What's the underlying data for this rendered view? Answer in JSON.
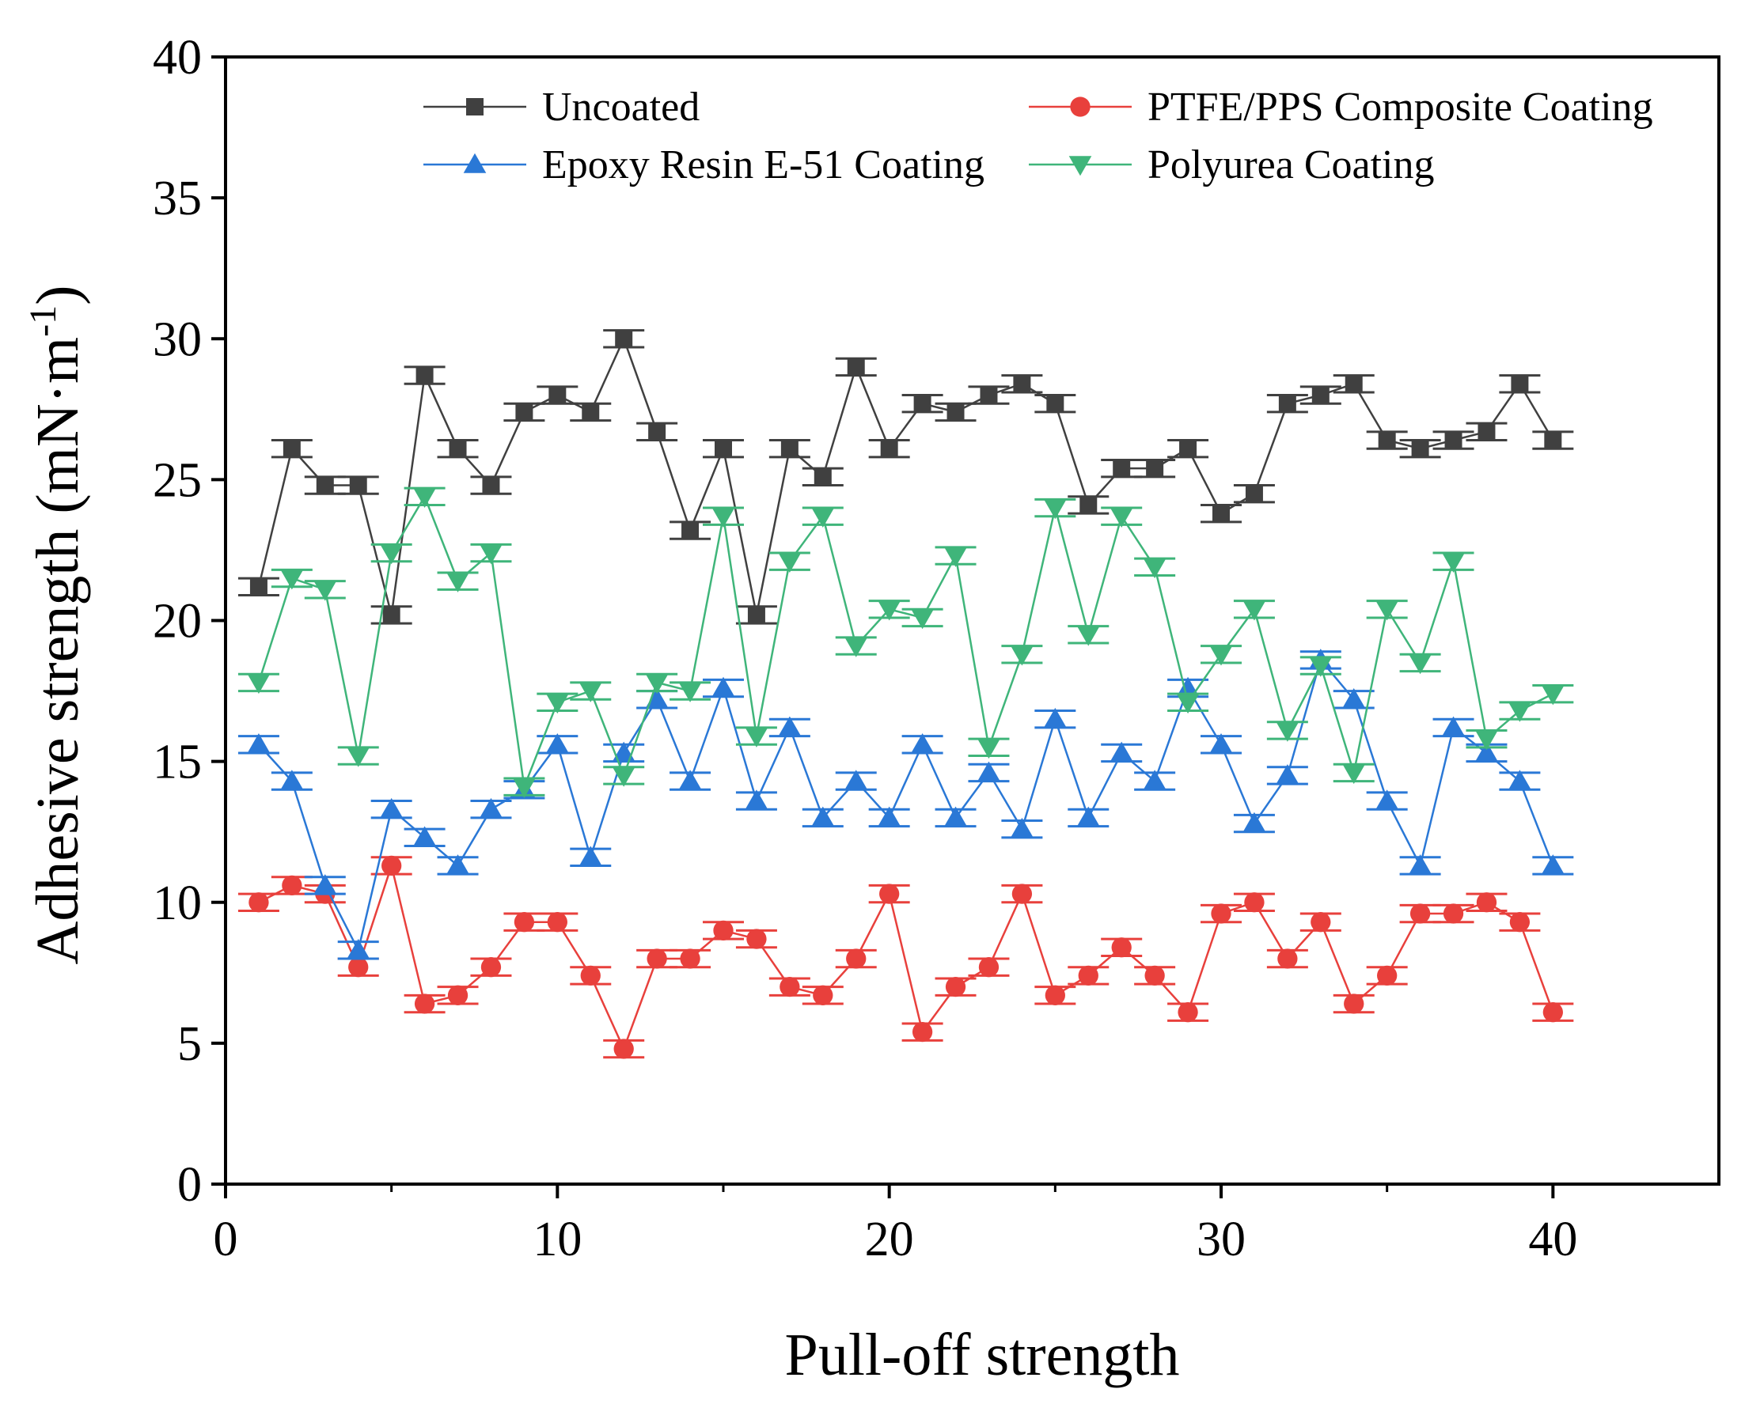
{
  "chart_data": {
    "type": "line",
    "title": "",
    "xlabel": "Pull-off strength",
    "ylabel_main": "Adhesive strength (mN·m",
    "ylabel_sup": "-1",
    "ylabel_close": ")",
    "xlim": [
      0,
      45
    ],
    "ylim": [
      0,
      40
    ],
    "xticks": [
      0,
      10,
      20,
      30,
      40
    ],
    "yticks": [
      0,
      5,
      10,
      15,
      20,
      25,
      30,
      35,
      40
    ],
    "grid": false,
    "legend_position": "top",
    "error_bar": 0.3,
    "x": [
      1,
      2,
      3,
      4,
      5,
      6,
      7,
      8,
      9,
      10,
      11,
      12,
      13,
      14,
      15,
      16,
      17,
      18,
      19,
      20,
      21,
      22,
      23,
      24,
      25,
      26,
      27,
      28,
      29,
      30,
      31,
      32,
      33,
      34,
      35,
      36,
      37,
      38,
      39,
      40
    ],
    "series": [
      {
        "name": "Uncoated",
        "color": "#404040",
        "marker": "square",
        "values": [
          21.2,
          26.1,
          24.8,
          24.8,
          20.2,
          28.7,
          26.1,
          24.8,
          27.4,
          28.0,
          27.4,
          30.0,
          26.7,
          23.2,
          26.1,
          20.2,
          26.1,
          25.1,
          29.0,
          26.1,
          27.7,
          27.4,
          28.0,
          28.4,
          27.7,
          24.1,
          25.4,
          25.4,
          26.1,
          23.8,
          24.5,
          27.7,
          28.0,
          28.4,
          26.4,
          26.1,
          26.4,
          26.7,
          28.4,
          26.4
        ]
      },
      {
        "name": "PTFE/PPS Composite Coating",
        "color": "#e8403c",
        "marker": "circle",
        "values": [
          10.0,
          10.6,
          10.3,
          7.7,
          11.3,
          6.4,
          6.7,
          7.7,
          9.3,
          9.3,
          7.4,
          4.8,
          8.0,
          8.0,
          9.0,
          8.7,
          7.0,
          6.7,
          8.0,
          10.3,
          5.4,
          7.0,
          7.7,
          10.3,
          6.7,
          7.4,
          8.4,
          7.4,
          6.1,
          9.6,
          10.0,
          8.0,
          9.3,
          6.4,
          7.4,
          9.6,
          9.6,
          10.0,
          9.3,
          6.1
        ]
      },
      {
        "name": "Epoxy Resin E-51 Coating",
        "color": "#2a78d6",
        "marker": "triangle-up",
        "values": [
          15.6,
          14.3,
          10.6,
          8.3,
          13.3,
          12.3,
          11.3,
          13.3,
          14.0,
          15.6,
          11.6,
          15.3,
          17.2,
          14.3,
          17.6,
          13.6,
          16.2,
          13.0,
          14.3,
          13.0,
          15.6,
          13.0,
          14.6,
          12.6,
          16.5,
          13.0,
          15.3,
          14.3,
          17.6,
          15.6,
          12.8,
          14.5,
          18.6,
          17.2,
          13.6,
          11.3,
          16.2,
          15.3,
          14.3,
          11.3
        ]
      },
      {
        "name": "Polyurea Coating",
        "color": "#3fb57a",
        "marker": "triangle-down",
        "values": [
          17.8,
          21.5,
          21.1,
          15.2,
          22.4,
          24.4,
          21.4,
          22.4,
          14.1,
          17.1,
          17.5,
          14.5,
          17.8,
          17.5,
          23.7,
          15.9,
          22.1,
          23.7,
          19.1,
          20.4,
          20.1,
          22.3,
          15.5,
          18.8,
          24.0,
          19.5,
          23.7,
          21.9,
          17.1,
          18.8,
          20.4,
          16.1,
          18.4,
          14.6,
          20.4,
          18.5,
          22.1,
          15.8,
          16.8,
          17.4
        ]
      }
    ]
  }
}
